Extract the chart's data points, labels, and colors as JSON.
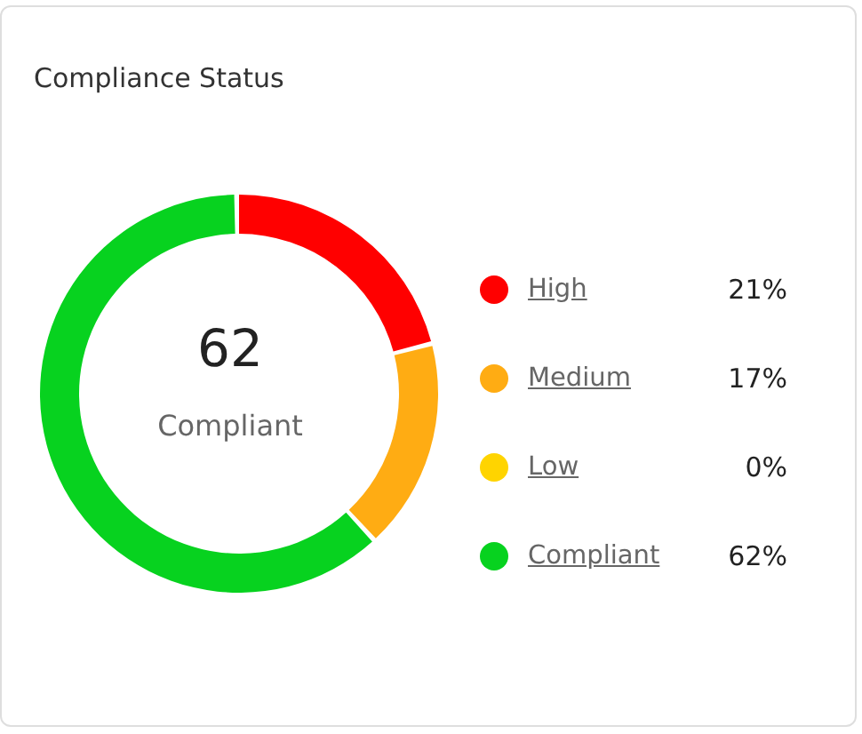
{
  "chart_data": {
    "type": "donut",
    "title": "Compliance Status",
    "categories": [
      "High",
      "Medium",
      "Low",
      "Compliant"
    ],
    "values": [
      21,
      17,
      0,
      62
    ],
    "colors": [
      "#ff0000",
      "#ffac13",
      "#ffd400",
      "#07d21f"
    ],
    "value_labels": [
      "21%",
      "17%",
      "0%",
      "62%"
    ],
    "legend": "right",
    "annotations": [
      "62",
      "Compliant"
    ]
  }
}
